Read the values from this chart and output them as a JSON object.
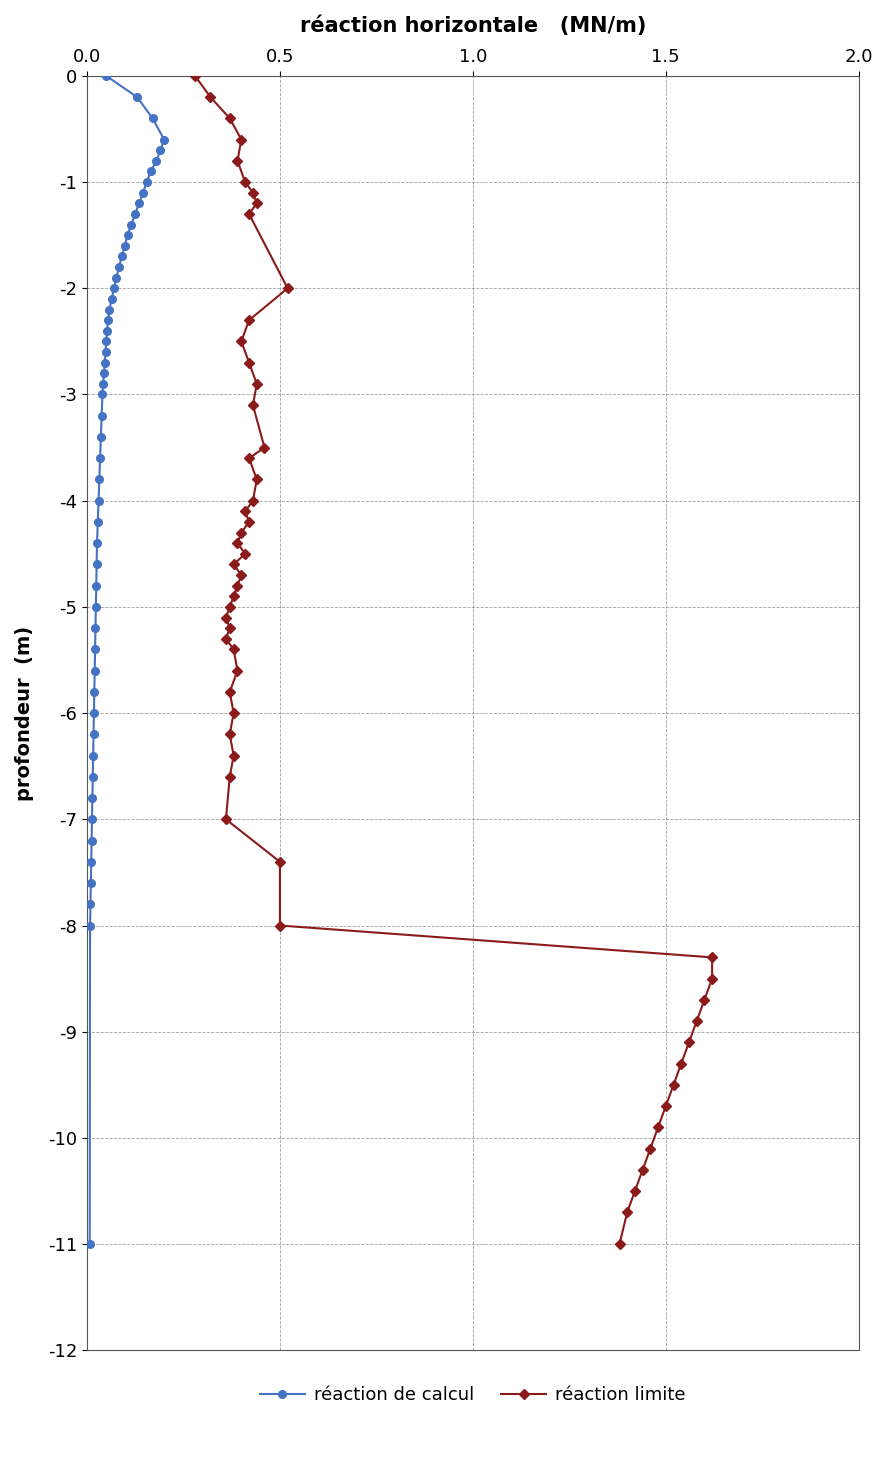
{
  "title": "réaction horizontale   (MN/m)",
  "ylabel": "profondeur  (m)",
  "xlim": [
    0.0,
    2.0
  ],
  "ylim": [
    -12,
    0
  ],
  "xticks": [
    0.0,
    0.5,
    1.0,
    1.5,
    2.0
  ],
  "yticks": [
    0,
    -1,
    -2,
    -3,
    -4,
    -5,
    -6,
    -7,
    -8,
    -9,
    -10,
    -11,
    -12
  ],
  "blue_color": "#4472C4",
  "red_color": "#8B1A1A",
  "blue_label": "réaction de calcul",
  "red_label": "réaction limite",
  "blue_x": [
    0.05,
    0.13,
    0.17,
    0.2,
    0.19,
    0.18,
    0.165,
    0.155,
    0.145,
    0.135,
    0.125,
    0.115,
    0.105,
    0.098,
    0.09,
    0.083,
    0.076,
    0.07,
    0.064,
    0.058,
    0.055,
    0.052,
    0.05,
    0.048,
    0.046,
    0.044,
    0.042,
    0.04,
    0.038,
    0.036,
    0.034,
    0.032,
    0.03,
    0.028,
    0.026,
    0.025,
    0.024,
    0.023,
    0.022,
    0.021,
    0.02,
    0.019,
    0.018,
    0.017,
    0.016,
    0.015,
    0.014,
    0.013,
    0.012,
    0.011,
    0.01,
    0.009,
    0.008,
    0.007
  ],
  "blue_y": [
    0.0,
    -0.2,
    -0.4,
    -0.6,
    -0.7,
    -0.8,
    -0.9,
    -1.0,
    -1.1,
    -1.2,
    -1.3,
    -1.4,
    -1.5,
    -1.6,
    -1.7,
    -1.8,
    -1.9,
    -2.0,
    -2.1,
    -2.2,
    -2.3,
    -2.4,
    -2.5,
    -2.6,
    -2.7,
    -2.8,
    -2.9,
    -3.0,
    -3.2,
    -3.4,
    -3.6,
    -3.8,
    -4.0,
    -4.2,
    -4.4,
    -4.6,
    -4.8,
    -5.0,
    -5.2,
    -5.4,
    -5.6,
    -5.8,
    -6.0,
    -6.2,
    -6.4,
    -6.6,
    -6.8,
    -7.0,
    -7.2,
    -7.4,
    -7.6,
    -7.8,
    -8.0,
    -11.0
  ],
  "red_x": [
    0.28,
    0.32,
    0.37,
    0.4,
    0.39,
    0.41,
    0.43,
    0.44,
    0.42,
    0.52,
    0.42,
    0.4,
    0.42,
    0.44,
    0.43,
    0.46,
    0.42,
    0.44,
    0.43,
    0.41,
    0.42,
    0.4,
    0.39,
    0.41,
    0.38,
    0.4,
    0.39,
    0.38,
    0.37,
    0.36,
    0.37,
    0.36,
    0.38,
    0.39,
    0.37,
    0.38,
    0.37,
    0.38,
    0.37,
    0.36,
    0.5,
    0.5,
    1.62,
    1.62,
    1.6,
    1.58,
    1.56,
    1.54,
    1.52,
    1.5,
    1.48,
    1.46,
    1.44,
    1.42,
    1.4,
    1.38
  ],
  "red_y": [
    0.0,
    -0.2,
    -0.4,
    -0.6,
    -0.8,
    -1.0,
    -1.1,
    -1.2,
    -1.3,
    -2.0,
    -2.3,
    -2.5,
    -2.7,
    -2.9,
    -3.1,
    -3.5,
    -3.6,
    -3.8,
    -4.0,
    -4.1,
    -4.2,
    -4.3,
    -4.4,
    -4.5,
    -4.6,
    -4.7,
    -4.8,
    -4.9,
    -5.0,
    -5.1,
    -5.2,
    -5.3,
    -5.4,
    -5.6,
    -5.8,
    -6.0,
    -6.2,
    -6.4,
    -6.6,
    -7.0,
    -7.4,
    -8.0,
    -8.3,
    -8.5,
    -8.7,
    -8.9,
    -9.1,
    -9.3,
    -9.5,
    -9.7,
    -9.9,
    -10.1,
    -10.3,
    -10.5,
    -10.7,
    -11.0
  ]
}
